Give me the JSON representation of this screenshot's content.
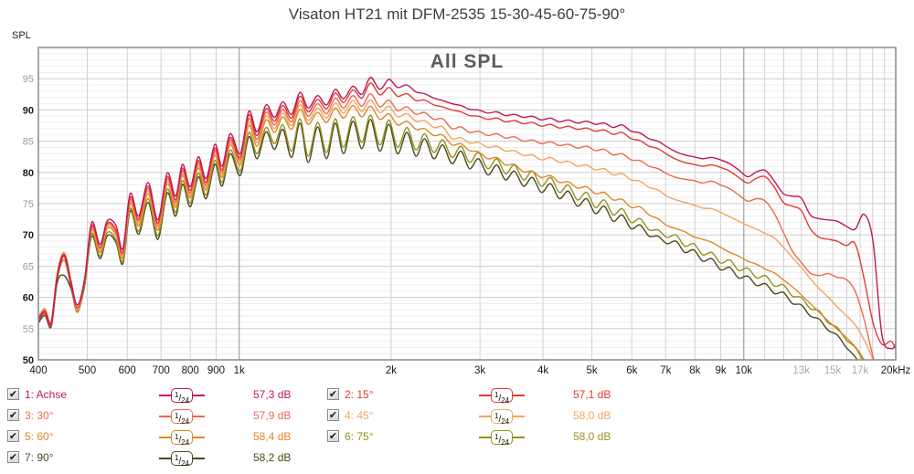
{
  "page": {
    "title": "Visaton HT21 mit DFM-2535 15-30-45-60-75-90°",
    "plot_label": "All SPL",
    "y_axis_label": "SPL"
  },
  "style": {
    "grid_minor_h": "#ededed",
    "grid_major_h": "#cbcbcb",
    "grid_v": "#d2d2d2",
    "grid_v_major": "#8f8f8f",
    "plot_border": "#909090",
    "tick_label_dark": "#1a1a1a",
    "tick_label_gray": "#9a9a9a",
    "tick_label_muted": "#a8a8a8"
  },
  "chart_data": {
    "type": "line",
    "title": "All SPL",
    "x_scale": "log",
    "xlabel_unit": "Hz",
    "ylabel": "SPL",
    "xlim": [
      400,
      20000
    ],
    "ylim": [
      50,
      100
    ],
    "grid": true,
    "legend_position": "bottom",
    "y_ticks_labeled": [
      50,
      55,
      60,
      65,
      70,
      75,
      80,
      85,
      90,
      95
    ],
    "y_minor_step_db": 1,
    "x_ticks": [
      {
        "f": 400,
        "label": "400"
      },
      {
        "f": 500,
        "label": "500"
      },
      {
        "f": 600,
        "label": "600"
      },
      {
        "f": 700,
        "label": "700"
      },
      {
        "f": 800,
        "label": "800"
      },
      {
        "f": 900,
        "label": "900"
      },
      {
        "f": 1000,
        "label": "1k"
      },
      {
        "f": 2000,
        "label": "2k"
      },
      {
        "f": 3000,
        "label": "3k"
      },
      {
        "f": 4000,
        "label": "4k"
      },
      {
        "f": 5000,
        "label": "5k"
      },
      {
        "f": 6000,
        "label": "6k"
      },
      {
        "f": 7000,
        "label": "7k"
      },
      {
        "f": 8000,
        "label": "8k"
      },
      {
        "f": 9000,
        "label": "9k"
      },
      {
        "f": 10000,
        "label": "10k"
      },
      {
        "f": 13000,
        "label": "13k",
        "muted": true
      },
      {
        "f": 15000,
        "label": "15k",
        "muted": true
      },
      {
        "f": 17000,
        "label": "17k",
        "muted": true
      },
      {
        "f": 20000,
        "label": "20kHz"
      }
    ],
    "x_grid_major": [
      1000,
      10000
    ],
    "freqs": [
      400,
      412,
      424,
      436,
      450,
      464,
      478,
      494,
      510,
      530,
      548,
      570,
      588,
      608,
      632,
      660,
      690,
      720,
      748,
      772,
      800,
      830,
      860,
      895,
      925,
      960,
      1005,
      1045,
      1085,
      1130,
      1175,
      1220,
      1270,
      1320,
      1370,
      1430,
      1490,
      1550,
      1610,
      1680,
      1750,
      1820,
      1900,
      1980,
      2060,
      2150,
      2240,
      2330,
      2430,
      2530,
      2640,
      2750,
      2860,
      2980,
      3110,
      3240,
      3370,
      3510,
      3660,
      3810,
      3970,
      4140,
      4310,
      4490,
      4680,
      4880,
      5080,
      5290,
      5510,
      5740,
      5980,
      6230,
      6490,
      6760,
      7040,
      7340,
      7640,
      7960,
      8290,
      8640,
      9000,
      9380,
      9770,
      10180,
      10600,
      11040,
      11500,
      11980,
      12480,
      13000,
      13540,
      14110,
      14700,
      15310,
      15950,
      16620,
      17310,
      18030,
      18780,
      19570,
      20000
    ],
    "series": [
      {
        "id": 1,
        "label": "1: Achse",
        "angle_deg": 0,
        "color": "#C11757",
        "checked": true,
        "smoothing_num": "1",
        "smoothing_den": "24",
        "level": "57,3 dB",
        "col": 0,
        "row": 0,
        "spl": [
          56.5,
          57.8,
          55.8,
          63.5,
          66.8,
          62.5,
          58.8,
          63.0,
          72.0,
          68.5,
          72.3,
          71.5,
          67.8,
          76.6,
          73.0,
          78.4,
          72.4,
          79.9,
          76.2,
          81.3,
          77.7,
          82.5,
          79.0,
          84.5,
          81.0,
          86.2,
          83.0,
          89.8,
          86.5,
          90.8,
          88.8,
          91.3,
          89.3,
          92.8,
          90.3,
          92.3,
          90.8,
          93.3,
          91.8,
          93.8,
          92.5,
          95.2,
          93.3,
          94.9,
          93.6,
          94.0,
          92.9,
          92.6,
          91.9,
          91.5,
          91.0,
          90.7,
          90.1,
          90.0,
          89.5,
          89.7,
          89.1,
          89.3,
          88.8,
          89.0,
          88.4,
          88.7,
          88.1,
          88.4,
          87.9,
          88.2,
          87.7,
          87.9,
          87.2,
          87.6,
          86.6,
          86.3,
          85.4,
          85.0,
          84.1,
          83.3,
          82.8,
          82.5,
          82.2,
          82.4,
          82.0,
          81.4,
          80.4,
          79.3,
          80.1,
          80.3,
          78.6,
          76.6,
          76.2,
          75.9,
          73.2,
          72.6,
          72.4,
          72.2,
          71.4,
          70.9,
          73.3,
          69.0,
          54.0,
          51.8,
          52.5
        ]
      },
      {
        "id": 2,
        "label": "2: 15°",
        "angle_deg": 15,
        "color": "#E03A35",
        "checked": true,
        "smoothing_num": "1",
        "smoothing_den": "24",
        "level": "57,1 dB",
        "col": 1,
        "row": 0,
        "spl": [
          56.3,
          57.5,
          55.5,
          63.2,
          66.5,
          62.0,
          58.4,
          62.6,
          71.5,
          68.0,
          71.9,
          70.8,
          67.3,
          76.0,
          72.5,
          77.8,
          71.9,
          79.3,
          75.6,
          80.7,
          77.1,
          81.9,
          78.4,
          83.9,
          80.4,
          85.6,
          82.4,
          89.2,
          85.9,
          90.2,
          88.2,
          90.7,
          88.7,
          92.2,
          89.7,
          91.7,
          90.2,
          92.7,
          91.2,
          93.2,
          91.9,
          94.3,
          92.4,
          93.6,
          92.2,
          92.6,
          91.5,
          91.6,
          90.8,
          90.5,
          90.0,
          89.7,
          89.1,
          89.0,
          88.5,
          88.7,
          88.1,
          88.3,
          87.8,
          88.0,
          87.4,
          87.7,
          87.1,
          87.4,
          86.9,
          87.1,
          86.6,
          86.8,
          86.1,
          86.4,
          85.4,
          85.1,
          84.2,
          83.8,
          82.9,
          82.1,
          81.6,
          81.3,
          81.0,
          81.2,
          80.8,
          80.2,
          79.2,
          78.3,
          79.1,
          79.3,
          77.6,
          75.2,
          74.6,
          73.9,
          71.0,
          69.6,
          69.3,
          69.0,
          68.3,
          68.6,
          63.0,
          56.0,
          52.5,
          53.0,
          51.7
        ]
      },
      {
        "id": 3,
        "label": "3: 30°",
        "angle_deg": 30,
        "color": "#EC6A4E",
        "checked": true,
        "smoothing_num": "1",
        "smoothing_den": "24",
        "level": "57,9 dB",
        "col": 0,
        "row": 1,
        "spl": [
          56.6,
          57.9,
          55.9,
          63.6,
          66.9,
          62.3,
          58.2,
          62.8,
          71.3,
          67.8,
          71.7,
          70.5,
          67.0,
          75.6,
          72.2,
          77.4,
          71.5,
          78.9,
          75.2,
          80.3,
          76.7,
          81.5,
          78.0,
          83.5,
          80.0,
          85.2,
          82.0,
          88.6,
          85.3,
          89.6,
          87.6,
          90.1,
          88.1,
          91.5,
          89.0,
          91.0,
          89.4,
          91.9,
          90.3,
          92.3,
          90.6,
          92.6,
          90.5,
          91.6,
          89.9,
          90.5,
          89.3,
          89.6,
          88.5,
          88.6,
          87.0,
          87.3,
          86.4,
          86.6,
          85.9,
          86.2,
          85.5,
          85.7,
          85.0,
          85.2,
          84.6,
          84.9,
          84.3,
          84.5,
          83.9,
          84.2,
          83.5,
          83.7,
          82.8,
          83.0,
          82.0,
          81.9,
          81.0,
          80.6,
          79.8,
          79.2,
          78.9,
          78.7,
          78.3,
          78.6,
          78.0,
          77.4,
          76.4,
          75.4,
          75.8,
          75.4,
          73.4,
          70.4,
          67.4,
          65.6,
          63.9,
          63.5,
          63.8,
          63.2,
          62.9,
          61.0,
          56.5,
          50.5,
          45.0,
          42.0,
          41.0
        ]
      },
      {
        "id": 4,
        "label": "4: 45°",
        "angle_deg": 45,
        "color": "#F2A55F",
        "checked": true,
        "smoothing_num": "1",
        "smoothing_den": "24",
        "level": "58,0 dB",
        "col": 1,
        "row": 1,
        "spl": [
          56.8,
          58.1,
          56.1,
          63.8,
          67.1,
          62.6,
          58.0,
          62.9,
          71.0,
          67.5,
          71.4,
          70.2,
          66.7,
          75.2,
          71.8,
          77.0,
          71.1,
          78.5,
          74.8,
          79.9,
          76.3,
          81.1,
          77.6,
          83.1,
          79.6,
          84.8,
          81.6,
          88.0,
          84.8,
          89.0,
          87.0,
          89.5,
          87.5,
          90.8,
          88.3,
          90.3,
          88.7,
          91.1,
          89.5,
          91.5,
          89.8,
          91.6,
          89.6,
          90.6,
          88.9,
          89.4,
          88.2,
          88.3,
          87.2,
          87.3,
          85.4,
          85.6,
          84.7,
          84.8,
          84.0,
          84.2,
          83.4,
          83.5,
          82.7,
          82.8,
          82.0,
          82.4,
          81.6,
          81.8,
          81.0,
          81.2,
          80.4,
          80.6,
          79.6,
          79.8,
          78.8,
          78.6,
          77.6,
          77.2,
          76.2,
          75.6,
          75.2,
          74.8,
          74.3,
          74.2,
          73.6,
          72.9,
          72.2,
          71.5,
          70.9,
          70.2,
          69.5,
          68.0,
          66.4,
          64.8,
          63.0,
          61.4,
          60.0,
          58.5,
          57.1,
          55.6,
          53.2,
          50.0,
          45.5,
          42.0,
          41.0
        ]
      },
      {
        "id": 5,
        "label": "5: 60°",
        "angle_deg": 60,
        "color": "#DF8627",
        "checked": true,
        "smoothing_num": "1",
        "smoothing_den": "24",
        "level": "58,4 dB",
        "col": 0,
        "row": 2,
        "spl": [
          56.9,
          58.2,
          56.2,
          63.9,
          67.2,
          62.8,
          57.8,
          62.7,
          70.8,
          67.2,
          71.1,
          69.9,
          66.4,
          74.9,
          71.4,
          76.6,
          70.7,
          78.1,
          74.4,
          79.5,
          75.9,
          80.7,
          77.2,
          82.7,
          79.2,
          84.4,
          81.2,
          87.5,
          84.2,
          88.4,
          86.4,
          88.9,
          86.9,
          90.1,
          87.7,
          89.6,
          88.0,
          90.3,
          88.7,
          90.7,
          88.9,
          90.6,
          88.5,
          89.4,
          87.6,
          88.2,
          86.9,
          87.0,
          85.9,
          86.0,
          84.4,
          84.6,
          83.5,
          83.3,
          82.2,
          82.4,
          81.2,
          81.3,
          80.1,
          80.2,
          79.2,
          79.5,
          78.4,
          78.5,
          77.5,
          77.7,
          76.6,
          76.8,
          75.6,
          75.7,
          74.4,
          74.5,
          73.2,
          72.6,
          71.5,
          71.0,
          70.5,
          69.7,
          69.3,
          68.8,
          68.0,
          67.2,
          66.6,
          65.8,
          65.3,
          64.5,
          63.9,
          62.8,
          61.7,
          60.4,
          59.0,
          57.6,
          56.2,
          54.9,
          53.6,
          52.1,
          50.0,
          46.6,
          42.6,
          39.6,
          38.6
        ]
      },
      {
        "id": 6,
        "label": "6: 75°",
        "angle_deg": 75,
        "color": "#94911C",
        "checked": true,
        "smoothing_num": "1",
        "smoothing_den": "24",
        "level": "58,0 dB",
        "col": 1,
        "row": 2,
        "spl": [
          56.2,
          57.4,
          55.6,
          62.9,
          66.0,
          61.8,
          57.6,
          62.2,
          70.2,
          66.6,
          70.4,
          69.2,
          65.8,
          74.2,
          70.6,
          75.8,
          69.9,
          77.3,
          73.6,
          78.7,
          75.1,
          79.9,
          76.4,
          81.9,
          78.4,
          83.6,
          80.2,
          86.4,
          83.0,
          87.2,
          84.6,
          87.6,
          83.4,
          88.6,
          82.6,
          88.0,
          83.2,
          88.6,
          84.0,
          88.9,
          84.8,
          89.2,
          84.4,
          88.4,
          84.0,
          87.2,
          83.6,
          86.2,
          83.2,
          85.2,
          82.4,
          84.2,
          81.6,
          83.2,
          80.6,
          82.2,
          79.8,
          81.2,
          78.8,
          80.2,
          77.8,
          79.2,
          76.8,
          78.0,
          75.6,
          76.8,
          74.4,
          75.6,
          73.2,
          74.2,
          72.0,
          72.6,
          70.8,
          70.8,
          69.6,
          70.0,
          68.2,
          68.6,
          66.8,
          67.2,
          65.5,
          66.0,
          64.3,
          64.7,
          63.1,
          63.5,
          61.8,
          62.0,
          60.2,
          60.0,
          58.2,
          57.8,
          55.9,
          55.2,
          53.2,
          52.0,
          49.5,
          46.0,
          42.0,
          39.0,
          38.0
        ]
      },
      {
        "id": 7,
        "label": "7: 90°",
        "angle_deg": 90,
        "color": "#4D481B",
        "checked": true,
        "smoothing_num": "1",
        "smoothing_den": "24",
        "level": "58,2 dB",
        "col": 0,
        "row": 3,
        "spl": [
          55.9,
          57.1,
          55.3,
          62.4,
          63.5,
          61.4,
          57.9,
          61.9,
          69.8,
          66.2,
          69.9,
          68.8,
          65.4,
          73.8,
          70.1,
          75.2,
          69.3,
          76.7,
          73.0,
          78.1,
          74.5,
          79.3,
          75.8,
          81.3,
          77.8,
          83.0,
          79.5,
          85.7,
          82.2,
          86.5,
          83.7,
          86.9,
          82.4,
          87.9,
          81.6,
          87.3,
          82.2,
          87.9,
          83.0,
          88.2,
          83.8,
          88.5,
          83.4,
          87.7,
          83.0,
          86.4,
          82.6,
          85.4,
          82.2,
          84.4,
          81.4,
          83.4,
          80.6,
          82.2,
          79.6,
          81.2,
          78.8,
          80.2,
          77.8,
          79.2,
          76.8,
          78.2,
          75.8,
          77.0,
          74.6,
          75.8,
          73.4,
          74.6,
          72.2,
          73.2,
          71.0,
          71.6,
          69.8,
          69.8,
          68.6,
          69.0,
          67.2,
          67.6,
          65.8,
          66.2,
          64.4,
          64.8,
          63.1,
          63.4,
          61.9,
          62.2,
          60.6,
          60.8,
          59.0,
          58.8,
          57.0,
          56.5,
          54.7,
          54.0,
          52.0,
          50.5,
          48.0,
          44.5,
          40.5,
          37.5,
          36.5
        ]
      }
    ]
  },
  "legend": {
    "checkbox_glyph": "✔",
    "fraction_slash": "/"
  }
}
